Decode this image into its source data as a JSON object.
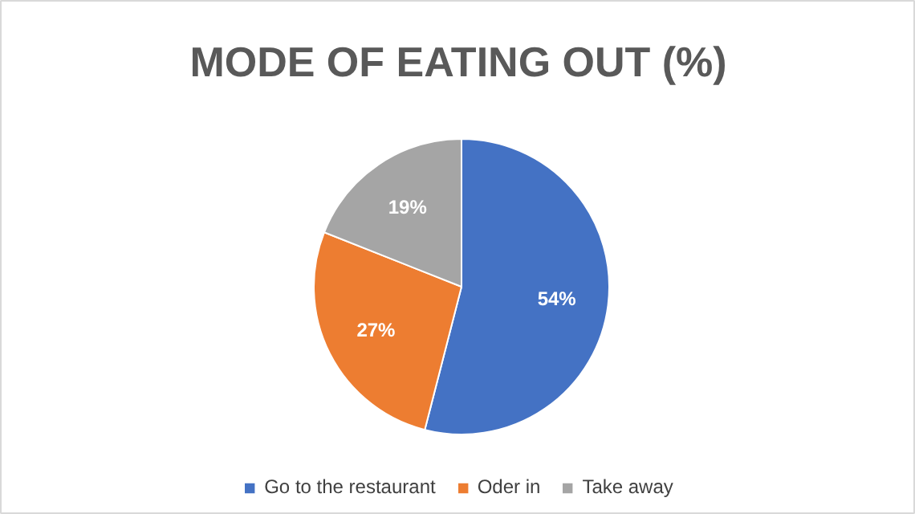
{
  "chart_data": {
    "type": "pie",
    "title": "MODE OF EATING OUT (%)",
    "categories": [
      "Go to the restaurant",
      "Oder in",
      "Take away"
    ],
    "values": [
      54,
      27,
      19
    ],
    "colors": [
      "#4472c4",
      "#ed7d31",
      "#a5a5a5"
    ],
    "value_labels": [
      "54%",
      "27%",
      "19%"
    ],
    "legend": "bottom"
  }
}
